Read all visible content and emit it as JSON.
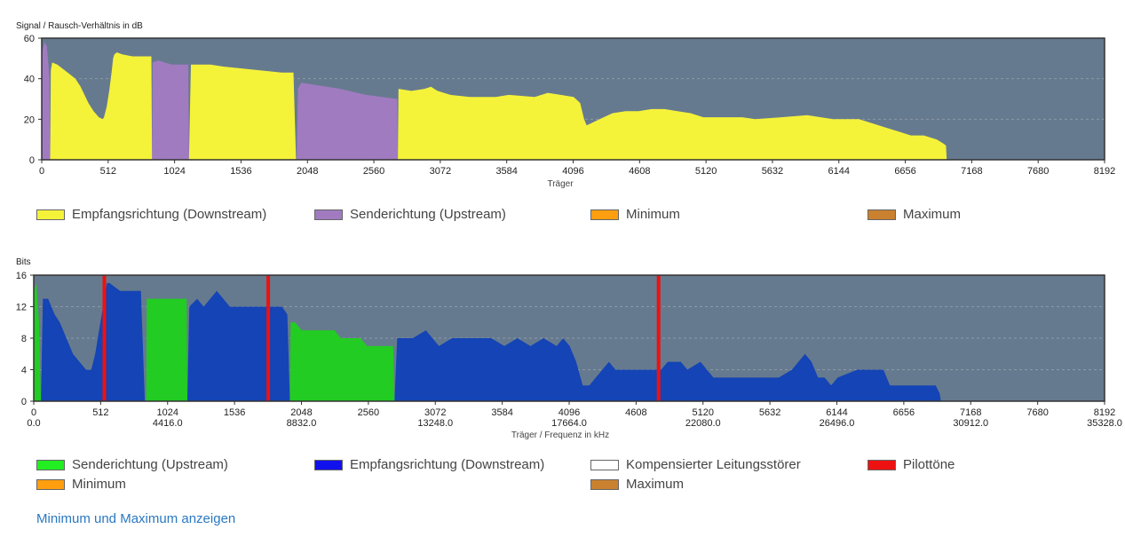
{
  "colors": {
    "plot_bg": "#667a8f",
    "yellow": "#f5f23a",
    "purple": "#a07bc0",
    "green": "#22cc22",
    "blue": "#1444b5",
    "red": "#ee1111",
    "orange": "#ff9e0f",
    "brown": "#c98130",
    "white": "#ffffff",
    "link": "#2a78c2"
  },
  "snr_legend": [
    {
      "label": "Empfangsrichtung (Downstream)",
      "color": "#f5f23a"
    },
    {
      "label": "Senderichtung (Upstream)",
      "color": "#a07bc0"
    },
    {
      "label": "Minimum",
      "color": "#ff9e0f"
    },
    {
      "label": "Maximum",
      "color": "#c98130"
    }
  ],
  "bits_legend": [
    {
      "label": "Senderichtung (Upstream)",
      "color": "#22ee22"
    },
    {
      "label": "Empfangsrichtung (Downstream)",
      "color": "#1111ee"
    },
    {
      "label": "Kompensierter Leitungsstörer",
      "color": "#ffffff"
    },
    {
      "label": "Pilottöne",
      "color": "#ee1111"
    },
    {
      "label": "Minimum",
      "color": "#ff9e0f"
    },
    {
      "label": "Maximum",
      "color": "#c98130"
    }
  ],
  "show_minmax_link": "Minimum und Maximum anzeigen",
  "chart_data": [
    {
      "type": "area",
      "title": "",
      "ylabel": "Signal / Rausch-Verhältnis in dB",
      "xlabel": "Träger",
      "xlim": [
        0,
        8192
      ],
      "ylim": [
        0,
        60
      ],
      "xticks": [
        0,
        512,
        1024,
        1536,
        2048,
        2560,
        3072,
        3584,
        4096,
        4608,
        5120,
        5632,
        6144,
        6656,
        7168,
        7680,
        8192
      ],
      "yticks": [
        0,
        20,
        40,
        60
      ],
      "grid": true,
      "series": [
        {
          "name": "Senderichtung (Upstream)",
          "color": "#a07bc0",
          "points": [
            [
              0,
              0
            ],
            [
              0,
              52
            ],
            [
              20,
              58
            ],
            [
              40,
              56
            ],
            [
              60,
              40
            ],
            [
              65,
              0
            ],
            [
              850,
              0
            ],
            [
              855,
              48
            ],
            [
              900,
              49
            ],
            [
              1000,
              47
            ],
            [
              1130,
              47
            ],
            [
              1135,
              0
            ],
            [
              1965,
              0
            ],
            [
              1975,
              35
            ],
            [
              2000,
              38
            ],
            [
              2100,
              37
            ],
            [
              2300,
              35
            ],
            [
              2500,
              32
            ],
            [
              2740,
              30
            ],
            [
              2745,
              0
            ]
          ]
        },
        {
          "name": "Empfangsrichtung (Downstream)",
          "color": "#f5f23a",
          "points": [
            [
              65,
              0
            ],
            [
              70,
              44
            ],
            [
              80,
              48
            ],
            [
              120,
              47
            ],
            [
              200,
              43
            ],
            [
              260,
              40
            ],
            [
              300,
              36
            ],
            [
              360,
              28
            ],
            [
              400,
              24
            ],
            [
              440,
              21
            ],
            [
              470,
              20
            ],
            [
              480,
              21
            ],
            [
              500,
              26
            ],
            [
              520,
              34
            ],
            [
              540,
              44
            ],
            [
              550,
              50
            ],
            [
              560,
              52
            ],
            [
              580,
              53
            ],
            [
              620,
              52
            ],
            [
              700,
              51
            ],
            [
              845,
              51
            ],
            [
              850,
              0
            ],
            [
              1135,
              0
            ],
            [
              1150,
              47
            ],
            [
              1300,
              47
            ],
            [
              1400,
              46
            ],
            [
              1550,
              45
            ],
            [
              1700,
              44
            ],
            [
              1850,
              43
            ],
            [
              1940,
              43
            ],
            [
              1960,
              0
            ],
            [
              2745,
              0
            ],
            [
              2750,
              35
            ],
            [
              2850,
              34
            ],
            [
              2950,
              35
            ],
            [
              3000,
              36
            ],
            [
              3050,
              34
            ],
            [
              3150,
              32
            ],
            [
              3300,
              31
            ],
            [
              3500,
              31
            ],
            [
              3600,
              32
            ],
            [
              3800,
              31
            ],
            [
              3900,
              33
            ],
            [
              4000,
              32
            ],
            [
              4100,
              31
            ],
            [
              4150,
              28
            ],
            [
              4180,
              20
            ],
            [
              4200,
              17
            ],
            [
              4300,
              20
            ],
            [
              4400,
              23
            ],
            [
              4500,
              24
            ],
            [
              4600,
              24
            ],
            [
              4700,
              25
            ],
            [
              4800,
              25
            ],
            [
              4900,
              24
            ],
            [
              5000,
              23
            ],
            [
              5100,
              21
            ],
            [
              5200,
              21
            ],
            [
              5400,
              21
            ],
            [
              5500,
              20
            ],
            [
              5700,
              21
            ],
            [
              5900,
              22
            ],
            [
              6100,
              20
            ],
            [
              6300,
              20
            ],
            [
              6400,
              18
            ],
            [
              6500,
              16
            ],
            [
              6600,
              14
            ],
            [
              6700,
              12
            ],
            [
              6800,
              12
            ],
            [
              6900,
              10
            ],
            [
              6950,
              8
            ],
            [
              6970,
              7
            ],
            [
              6975,
              0
            ]
          ]
        }
      ]
    },
    {
      "type": "area",
      "title": "",
      "ylabel": "Bits",
      "xlabel": "Träger / Frequenz in kHz",
      "xlim": [
        0,
        8192
      ],
      "ylim": [
        0,
        16
      ],
      "xticks": [
        0,
        512,
        1024,
        1536,
        2048,
        2560,
        3072,
        3584,
        4096,
        4608,
        5120,
        5632,
        6144,
        6656,
        7168,
        7680,
        8192
      ],
      "xticks_khz": [
        "0.0",
        "4416.0",
        "8832.0",
        "13248.0",
        "17664.0",
        "22080.0",
        "26496.0",
        "30912.0",
        "35328.0"
      ],
      "yticks": [
        0,
        4,
        8,
        12,
        16
      ],
      "grid": true,
      "pilot_tones": [
        540,
        1794,
        4780
      ],
      "series": [
        {
          "name": "Senderichtung (Upstream)",
          "color": "#22cc22",
          "points": [
            [
              0,
              0
            ],
            [
              0,
              14
            ],
            [
              20,
              15
            ],
            [
              40,
              10
            ],
            [
              55,
              0
            ],
            [
              860,
              0
            ],
            [
              865,
              13
            ],
            [
              1000,
              13
            ],
            [
              1170,
              13
            ],
            [
              1175,
              0
            ],
            [
              1960,
              0
            ],
            [
              1965,
              10
            ],
            [
              2000,
              10
            ],
            [
              2050,
              9
            ],
            [
              2300,
              9
            ],
            [
              2350,
              8
            ],
            [
              2500,
              8
            ],
            [
              2550,
              7
            ],
            [
              2750,
              7
            ],
            [
              2760,
              0
            ]
          ]
        },
        {
          "name": "Empfangsrichtung (Downstream)",
          "color": "#1444b5",
          "points": [
            [
              55,
              0
            ],
            [
              70,
              13
            ],
            [
              110,
              13
            ],
            [
              160,
              11
            ],
            [
              200,
              10
            ],
            [
              250,
              8
            ],
            [
              300,
              6
            ],
            [
              350,
              5
            ],
            [
              400,
              4
            ],
            [
              440,
              4
            ],
            [
              470,
              6
            ],
            [
              500,
              9
            ],
            [
              540,
              13
            ],
            [
              560,
              15
            ],
            [
              580,
              15
            ],
            [
              660,
              14
            ],
            [
              820,
              14
            ],
            [
              850,
              0
            ],
            [
              1175,
              0
            ],
            [
              1190,
              12
            ],
            [
              1250,
              13
            ],
            [
              1300,
              12
            ],
            [
              1350,
              13
            ],
            [
              1400,
              14
            ],
            [
              1450,
              13
            ],
            [
              1500,
              12
            ],
            [
              1700,
              12
            ],
            [
              1900,
              12
            ],
            [
              1940,
              11
            ],
            [
              1960,
              0
            ],
            [
              2760,
              0
            ],
            [
              2780,
              8
            ],
            [
              2900,
              8
            ],
            [
              3000,
              9
            ],
            [
              3050,
              8
            ],
            [
              3100,
              7
            ],
            [
              3200,
              8
            ],
            [
              3500,
              8
            ],
            [
              3600,
              7
            ],
            [
              3700,
              8
            ],
            [
              3800,
              7
            ],
            [
              3900,
              8
            ],
            [
              4000,
              7
            ],
            [
              4050,
              8
            ],
            [
              4100,
              7
            ],
            [
              4150,
              5
            ],
            [
              4200,
              2
            ],
            [
              4250,
              2
            ],
            [
              4300,
              3
            ],
            [
              4350,
              4
            ],
            [
              4400,
              5
            ],
            [
              4450,
              4
            ],
            [
              4800,
              4
            ],
            [
              4850,
              5
            ],
            [
              4950,
              5
            ],
            [
              5000,
              4
            ],
            [
              5100,
              5
            ],
            [
              5200,
              3
            ],
            [
              5300,
              3
            ],
            [
              5600,
              3
            ],
            [
              5700,
              3
            ],
            [
              5800,
              4
            ],
            [
              5850,
              5
            ],
            [
              5900,
              6
            ],
            [
              5950,
              5
            ],
            [
              6000,
              3
            ],
            [
              6050,
              3
            ],
            [
              6100,
              2
            ],
            [
              6150,
              3
            ],
            [
              6300,
              4
            ],
            [
              6500,
              4
            ],
            [
              6550,
              2
            ],
            [
              6900,
              2
            ],
            [
              6930,
              1
            ],
            [
              6940,
              0
            ]
          ]
        }
      ]
    }
  ]
}
